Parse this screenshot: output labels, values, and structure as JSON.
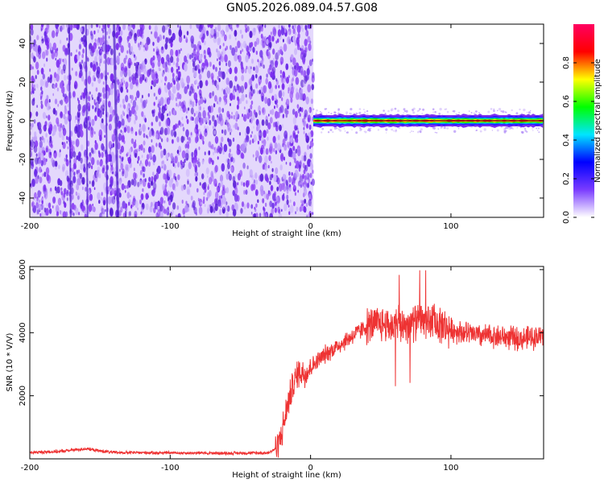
{
  "title": "GN05.2026.089.04.57.G08",
  "chart_data": [
    {
      "type": "heatmap",
      "name": "spectrogram",
      "xlabel": "Height of straight line (km)",
      "ylabel": "Frequency (Hz)",
      "xlim": [
        -200,
        166
      ],
      "ylim": [
        -50,
        50
      ],
      "x_ticks": [
        -200,
        -100,
        0,
        100
      ],
      "y_ticks": [
        -40,
        -20,
        0,
        20,
        40
      ],
      "noise_region_x": [
        -200,
        2
      ],
      "signal_region_x": [
        2,
        166
      ],
      "signal_center_hz": 0,
      "colorbar": {
        "label": "Normalized spectral amplitude",
        "range": [
          0,
          1
        ],
        "ticks": [
          "0.0",
          "0.2",
          "0.4",
          "0.6",
          "0.8"
        ],
        "colors": [
          "#ffffff",
          "#7a3cff",
          "#0000ff",
          "#00e5ff",
          "#00ff00",
          "#ffff00",
          "#ff0000",
          "#ff0060"
        ]
      },
      "grid": false
    },
    {
      "type": "line",
      "name": "snr",
      "xlabel": "Height of straight line (km)",
      "ylabel": "SNR (10 * V/V)",
      "xlim": [
        -200,
        166
      ],
      "ylim": [
        0,
        6100
      ],
      "x_ticks": [
        -200,
        -100,
        0,
        100
      ],
      "y_ticks": [
        2000,
        4000,
        6000
      ],
      "color": "#ee3333",
      "x": [
        -200,
        -180,
        -160,
        -150,
        -140,
        -100,
        -60,
        -30,
        -24,
        -20,
        -16,
        -12,
        -8,
        -4,
        0,
        10,
        20,
        30,
        40,
        50,
        60,
        70,
        80,
        90,
        100,
        110,
        120,
        130,
        140,
        150,
        166
      ],
      "y": [
        200,
        230,
        320,
        250,
        200,
        190,
        180,
        190,
        350,
        900,
        1800,
        2400,
        2800,
        2700,
        2900,
        3300,
        3600,
        3900,
        4200,
        4300,
        4200,
        4300,
        4400,
        4300,
        4100,
        4000,
        3900,
        3900,
        3850,
        3800,
        3900
      ],
      "grid": false
    }
  ]
}
